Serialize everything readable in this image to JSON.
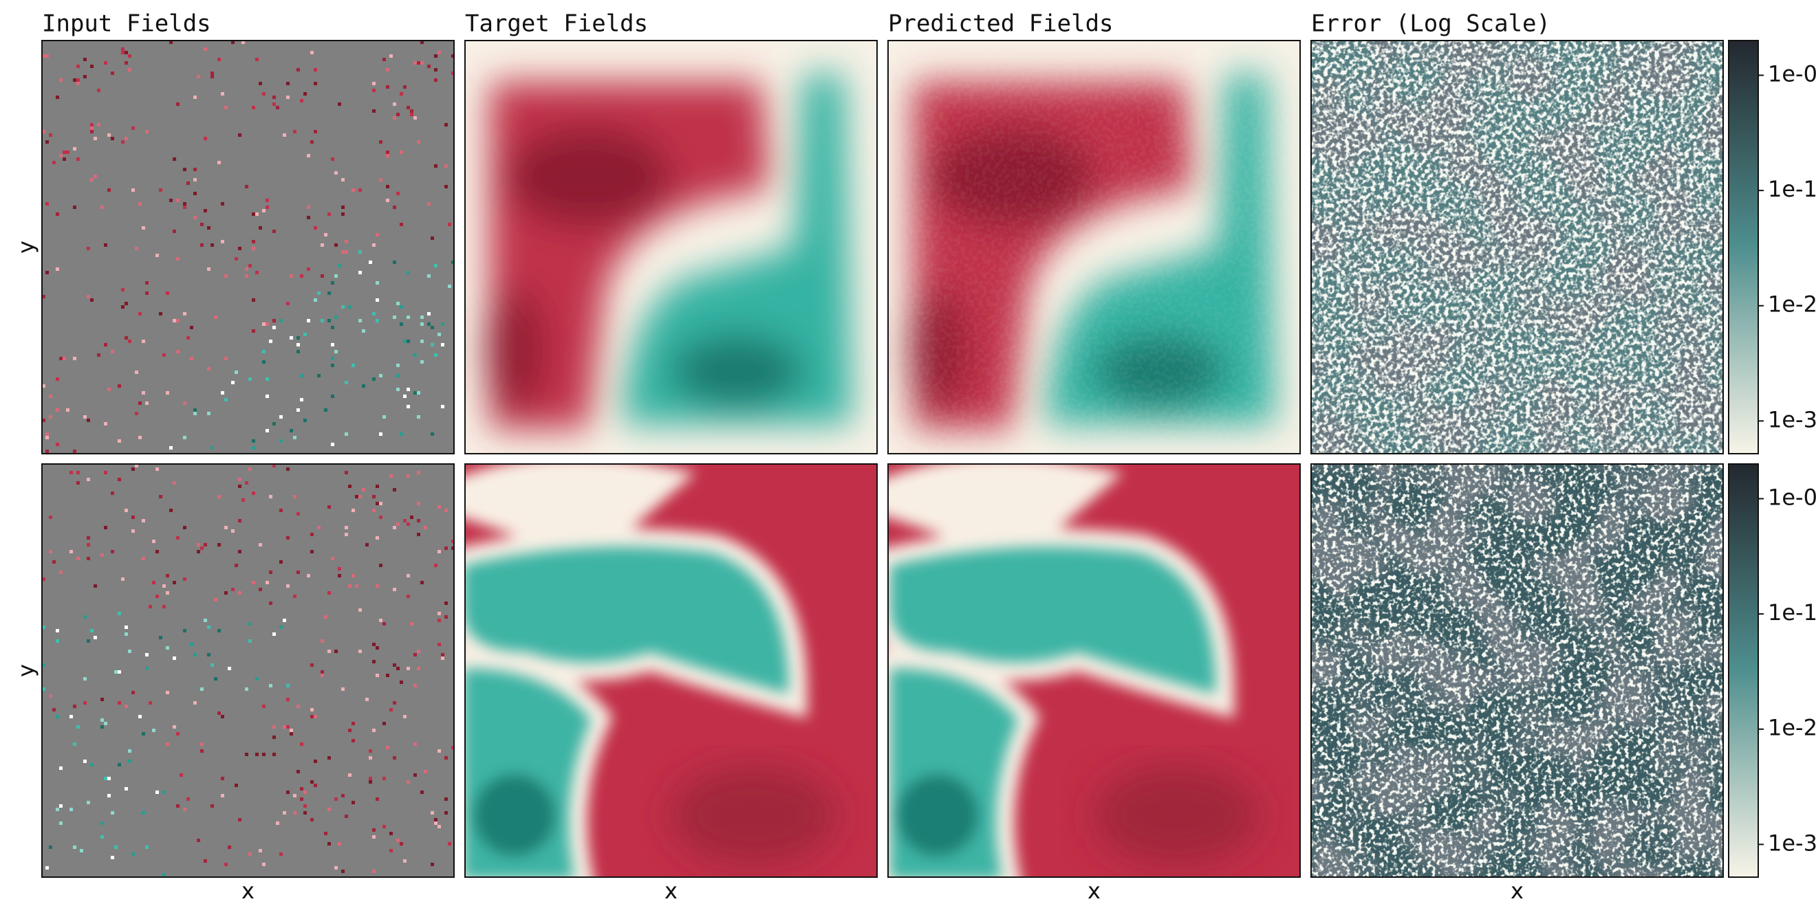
{
  "chart_data": {
    "type": "heatmap",
    "titles": [
      "Input Fields",
      "Target Fields",
      "Predicted Fields",
      "Error (Log Scale)"
    ],
    "xlabel": "x",
    "ylabel": "y",
    "colorbar": {
      "log": true,
      "ylim": [
        0.00052,
        2.0
      ],
      "yticks": [
        {
          "value": 0.001,
          "label": "1e-3"
        },
        {
          "value": 0.01,
          "label": "1e-2"
        },
        {
          "value": 0.1,
          "label": "1e-1"
        },
        {
          "value": 1,
          "label": "1e-0"
        }
      ],
      "colors": [
        "#f7f4e8",
        "#4f8f8f",
        "#23282f"
      ]
    }
  }
}
